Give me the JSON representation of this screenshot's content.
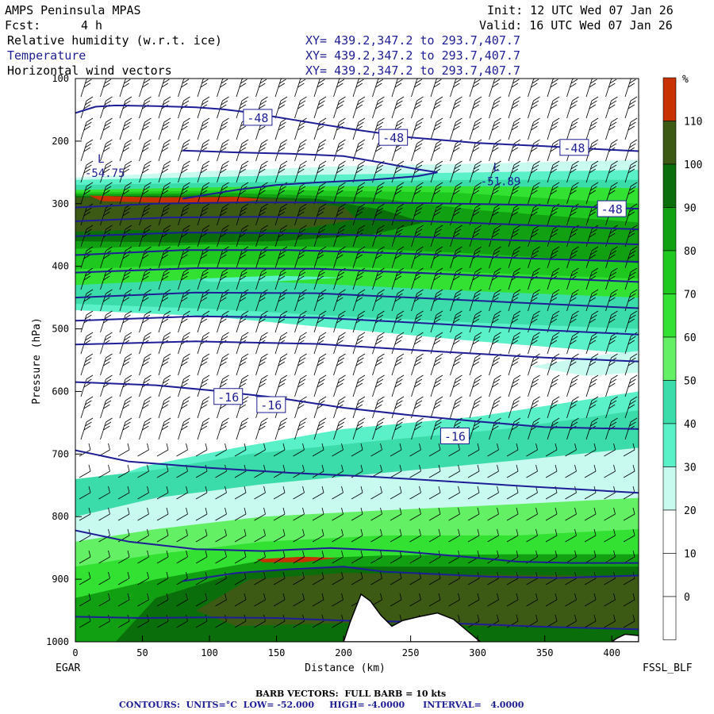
{
  "header": {
    "model": "AMPS Peninsula MPAS",
    "init": "Init: 12 UTC Wed 07 Jan 26",
    "fcst_label": "Fcst:",
    "fcst_value": "4 h",
    "valid": "Valid: 16 UTC Wed 07 Jan 26",
    "fields": [
      {
        "name": "Relative humidity (w.r.t. ice)",
        "xy": "XY= 439.2,347.2 to 293.7,407.7",
        "color": "#000000"
      },
      {
        "name": "Temperature",
        "xy": "XY= 439.2,347.2 to 293.7,407.7",
        "color": "#1e1e96"
      },
      {
        "name": "Horizontal wind vectors",
        "xy": "XY= 439.2,347.2 to 293.7,407.7",
        "color": "#000000"
      }
    ]
  },
  "footer": {
    "left_station": "EGAR",
    "right_station": "FSSL_BLF",
    "barb_note": "BARB VECTORS:  FULL BARB = 10 kts",
    "contours": "CONTOURS:  UNITS=°C  LOW= -52.000     HIGH= -4.0000      INTERVAL=   4.0000"
  },
  "chart_data": {
    "type": "heatmap",
    "xlabel": "Distance (km)",
    "ylabel": "Pressure (hPa)",
    "xlim": [
      0,
      420
    ],
    "ylim": [
      1000,
      100
    ],
    "x_ticks": [
      0,
      50,
      100,
      150,
      200,
      250,
      300,
      350,
      400
    ],
    "y_ticks": [
      100,
      200,
      300,
      400,
      500,
      600,
      700,
      800,
      900,
      1000
    ],
    "colorbar": {
      "unit": "%",
      "levels": [
        110,
        100,
        90,
        80,
        70,
        60,
        50,
        40,
        30,
        20,
        10,
        0
      ],
      "colors": [
        "#c83200",
        "#3c5a14",
        "#0a6e0a",
        "#11a011",
        "#1ec81e",
        "#32e132",
        "#64f064",
        "#3cdcaa",
        "#5af0c8",
        "#c8faf0",
        "#ffffff",
        "#ffffff",
        "#ffffff"
      ]
    },
    "temperature_labels": [
      {
        "value": "-48",
        "x": 136,
        "p": 162
      },
      {
        "value": "-48",
        "x": 237,
        "p": 194
      },
      {
        "value": "-48",
        "x": 372,
        "p": 210
      },
      {
        "value": "-48",
        "x": 400,
        "p": 308
      },
      {
        "value": "-16",
        "x": 114,
        "p": 608
      },
      {
        "value": "-16",
        "x": 146,
        "p": 621
      },
      {
        "value": "-16",
        "x": 283,
        "p": 671
      }
    ],
    "extrema": [
      {
        "label": "L",
        "value": "-54.75",
        "x": 13,
        "p": 242
      },
      {
        "label": "L",
        "value": "-51.89",
        "x": 308,
        "p": 255
      }
    ],
    "isotherms": [
      [
        [
          0,
          155
        ],
        [
          15,
          145
        ],
        [
          30,
          143
        ],
        [
          60,
          144
        ],
        [
          90,
          146
        ],
        [
          110,
          149
        ],
        [
          125,
          153
        ],
        [
          140,
          158
        ],
        [
          160,
          165
        ],
        [
          180,
          172
        ],
        [
          210,
          182
        ],
        [
          250,
          194
        ],
        [
          300,
          203
        ],
        [
          350,
          208
        ],
        [
          400,
          214
        ],
        [
          420,
          216
        ]
      ],
      [
        [
          80,
          215
        ],
        [
          120,
          218
        ],
        [
          160,
          220
        ],
        [
          200,
          224
        ],
        [
          230,
          235
        ],
        [
          255,
          245
        ],
        [
          270,
          250
        ],
        [
          255,
          256
        ],
        [
          220,
          262
        ],
        [
          180,
          266
        ],
        [
          150,
          270
        ],
        [
          120,
          278
        ],
        [
          100,
          285
        ],
        [
          80,
          292
        ]
      ],
      [
        [
          0,
          306
        ],
        [
          60,
          300
        ],
        [
          120,
          298
        ],
        [
          180,
          298
        ],
        [
          260,
          299
        ],
        [
          340,
          302
        ],
        [
          420,
          308
        ]
      ],
      [
        [
          0,
          328
        ],
        [
          70,
          322
        ],
        [
          140,
          321
        ],
        [
          220,
          325
        ],
        [
          300,
          331
        ],
        [
          370,
          337
        ],
        [
          420,
          341
        ]
      ],
      [
        [
          0,
          352
        ],
        [
          80,
          346
        ],
        [
          160,
          347
        ],
        [
          240,
          352
        ],
        [
          320,
          358
        ],
        [
          420,
          365
        ]
      ],
      [
        [
          0,
          382
        ],
        [
          80,
          374
        ],
        [
          160,
          374
        ],
        [
          250,
          380
        ],
        [
          330,
          387
        ],
        [
          420,
          393
        ]
      ],
      [
        [
          0,
          410
        ],
        [
          90,
          403
        ],
        [
          180,
          404
        ],
        [
          260,
          411
        ],
        [
          340,
          418
        ],
        [
          420,
          425
        ]
      ],
      [
        [
          0,
          450
        ],
        [
          90,
          442
        ],
        [
          180,
          443
        ],
        [
          270,
          452
        ],
        [
          350,
          460
        ],
        [
          420,
          467
        ]
      ],
      [
        [
          0,
          487
        ],
        [
          90,
          480
        ],
        [
          180,
          482
        ],
        [
          270,
          492
        ],
        [
          350,
          502
        ],
        [
          420,
          509
        ]
      ],
      [
        [
          0,
          525
        ],
        [
          90,
          520
        ],
        [
          180,
          524
        ],
        [
          270,
          536
        ],
        [
          350,
          546
        ],
        [
          420,
          552
        ]
      ],
      [
        [
          0,
          585
        ],
        [
          60,
          590
        ],
        [
          100,
          598
        ],
        [
          150,
          610
        ],
        [
          200,
          626
        ],
        [
          250,
          638
        ],
        [
          300,
          648
        ],
        [
          350,
          657
        ],
        [
          420,
          660
        ]
      ],
      [
        [
          0,
          694
        ],
        [
          40,
          712
        ],
        [
          100,
          722
        ],
        [
          160,
          730
        ],
        [
          220,
          736
        ],
        [
          280,
          744
        ],
        [
          340,
          752
        ],
        [
          420,
          762
        ]
      ],
      [
        [
          0,
          822
        ],
        [
          40,
          840
        ],
        [
          90,
          852
        ],
        [
          140,
          855
        ],
        [
          190,
          850
        ],
        [
          240,
          855
        ],
        [
          290,
          864
        ],
        [
          330,
          872
        ],
        [
          370,
          874
        ],
        [
          420,
          874
        ]
      ],
      [
        [
          80,
          903
        ],
        [
          120,
          890
        ],
        [
          160,
          884
        ],
        [
          200,
          880
        ],
        [
          230,
          888
        ],
        [
          270,
          892
        ],
        [
          310,
          896
        ],
        [
          360,
          898
        ],
        [
          420,
          894
        ]
      ],
      [
        [
          0,
          960
        ],
        [
          50,
          962
        ],
        [
          100,
          961
        ],
        [
          150,
          962
        ],
        [
          200,
          966
        ],
        [
          250,
          968
        ],
        [
          300,
          972
        ],
        [
          350,
          976
        ],
        [
          420,
          980
        ]
      ]
    ],
    "terrain": [
      [
        200,
        1000
      ],
      [
        205,
        968
      ],
      [
        213,
        924
      ],
      [
        220,
        935
      ],
      [
        228,
        958
      ],
      [
        236,
        975
      ],
      [
        244,
        966
      ],
      [
        256,
        960
      ],
      [
        270,
        954
      ],
      [
        282,
        964
      ],
      [
        292,
        982
      ],
      [
        302,
        1000
      ]
    ],
    "terrain_right": [
      [
        400,
        1000
      ],
      [
        404,
        994
      ],
      [
        410,
        988
      ],
      [
        420,
        990
      ],
      [
        420,
        1000
      ]
    ]
  }
}
